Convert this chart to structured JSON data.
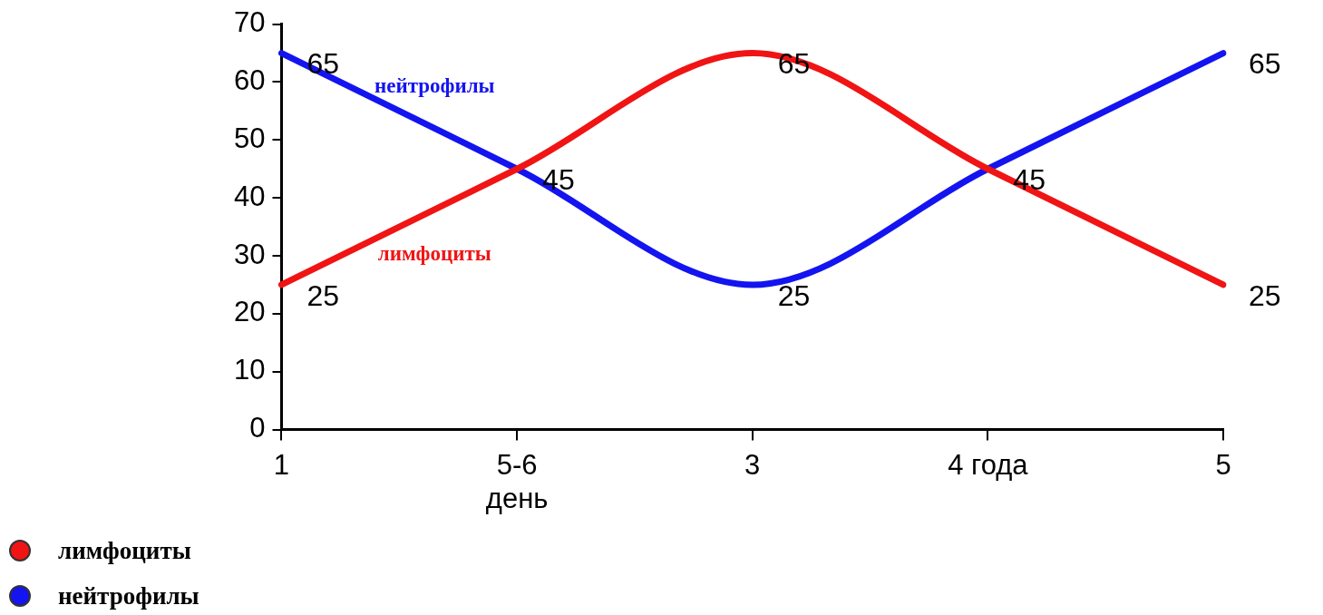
{
  "chart_data": {
    "type": "line",
    "categories": [
      "1",
      "5-6 день",
      "3",
      "4 года",
      "5"
    ],
    "series": [
      {
        "name": "лимфоциты",
        "color": "#f01414",
        "values": [
          25,
          45,
          65,
          45,
          25
        ],
        "value_labels": [
          "25",
          "45",
          "65",
          "45",
          "25"
        ]
      },
      {
        "name": "нейтрофилы",
        "color": "#1414f0",
        "values": [
          65,
          45,
          25,
          45,
          65
        ],
        "value_labels": [
          "65",
          null,
          "25",
          null,
          "65"
        ]
      }
    ],
    "ylim": [
      0,
      70
    ],
    "yticks": [
      0,
      10,
      20,
      30,
      40,
      50,
      60,
      70
    ],
    "grid": false,
    "legend": "bottom left",
    "marker": "none",
    "line_style": "solid"
  }
}
